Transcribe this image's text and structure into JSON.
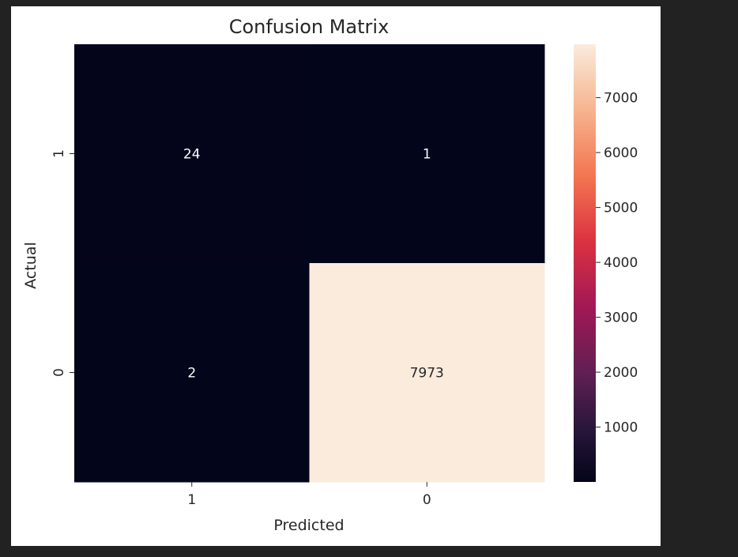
{
  "page": {
    "background": "#222222",
    "figure_background": "#ffffff"
  },
  "chart_data": {
    "type": "heatmap",
    "title": "Confusion Matrix",
    "xlabel": "Predicted",
    "ylabel": "Actual",
    "x_categories": [
      "1",
      "0"
    ],
    "y_categories": [
      "1",
      "0"
    ],
    "values": [
      [
        24,
        1
      ],
      [
        2,
        7973
      ]
    ],
    "colorbar": {
      "ticks": [
        "1000",
        "2000",
        "3000",
        "4000",
        "5000",
        "6000",
        "7000"
      ],
      "range": [
        1,
        7973
      ],
      "colormap": "rocket"
    }
  }
}
